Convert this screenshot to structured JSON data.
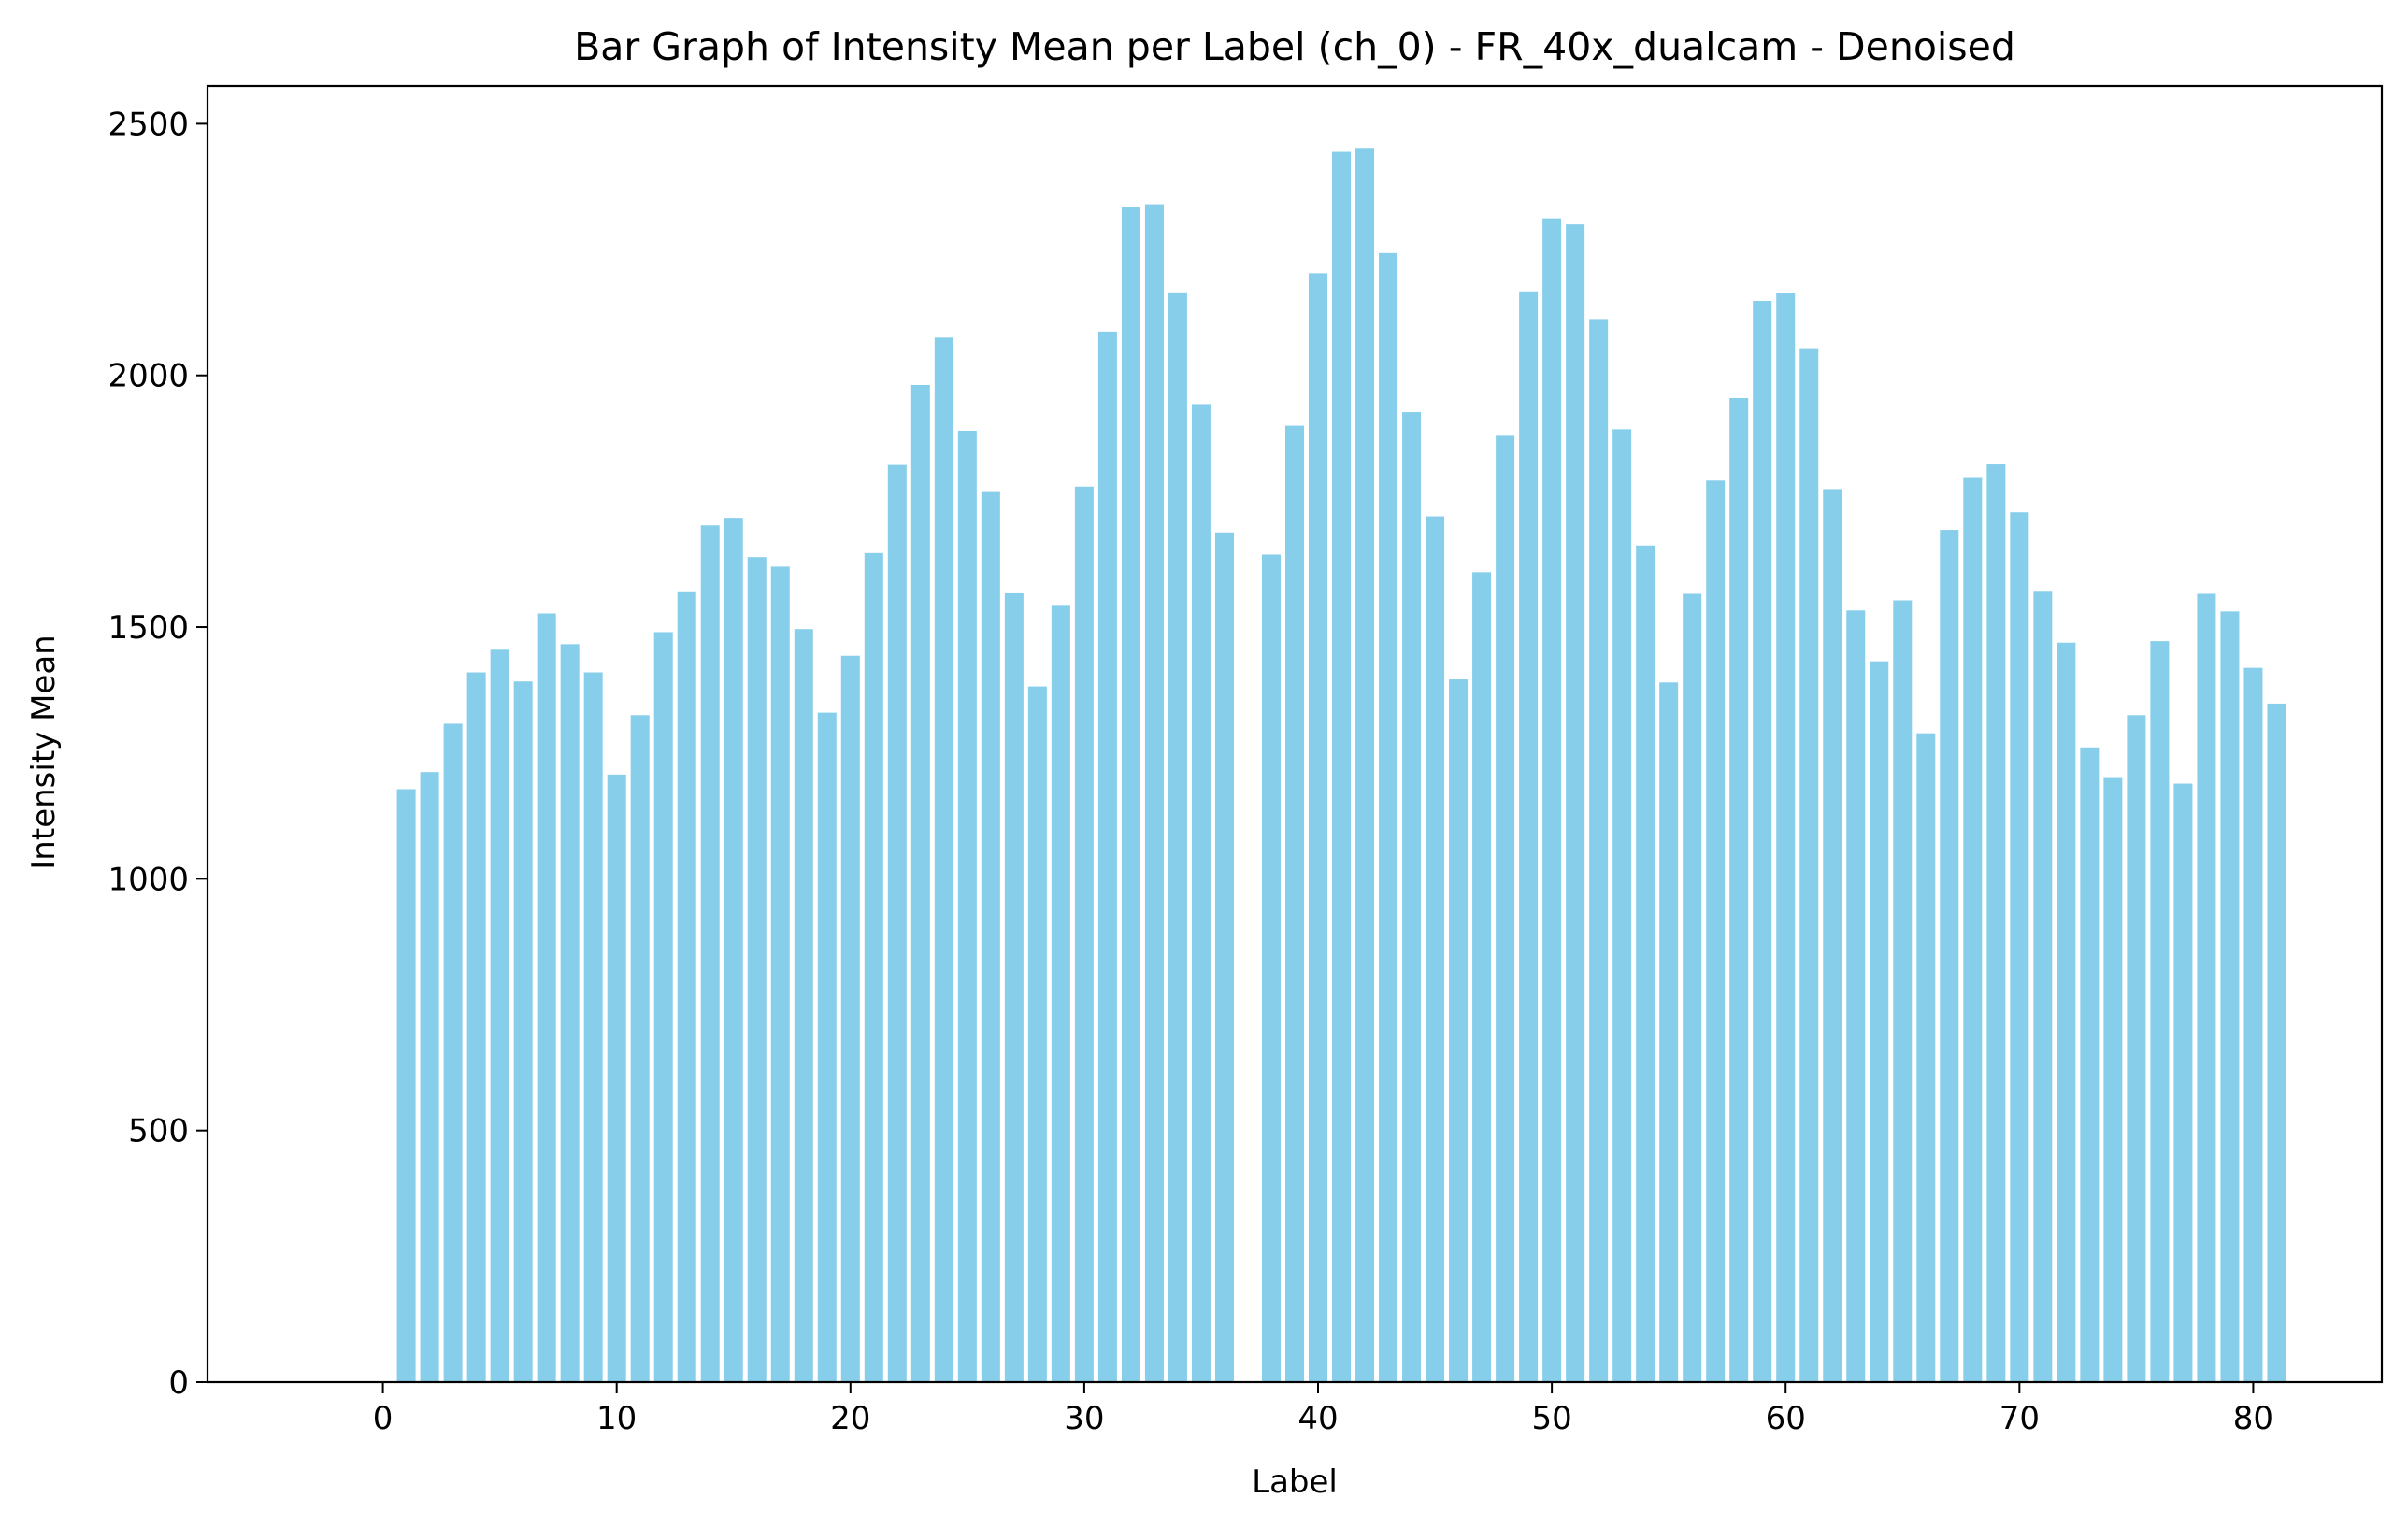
{
  "chart_data": {
    "type": "bar",
    "title": "Bar Graph of Intensity Mean per Label (ch_0) - FR_40x_dualcam - Denoised",
    "xlabel": "Label",
    "ylabel": "Intensity Mean",
    "x": [
      1,
      2,
      3,
      4,
      5,
      6,
      7,
      8,
      9,
      10,
      11,
      12,
      13,
      14,
      15,
      16,
      17,
      18,
      19,
      20,
      21,
      22,
      23,
      24,
      25,
      26,
      27,
      28,
      29,
      30,
      31,
      32,
      33,
      34,
      35,
      36,
      38,
      39,
      40,
      41,
      42,
      43,
      44,
      45,
      46,
      47,
      48,
      49,
      50,
      51,
      52,
      53,
      54,
      55,
      56,
      57,
      58,
      59,
      60,
      61,
      62,
      63,
      64,
      65,
      66,
      67,
      68,
      69,
      70,
      71,
      72,
      73,
      74,
      75,
      76,
      77,
      78,
      79,
      80,
      81
    ],
    "values": [
      1178,
      1212,
      1308,
      1410,
      1455,
      1392,
      1527,
      1466,
      1410,
      1207,
      1325,
      1490,
      1571,
      1702,
      1717,
      1639,
      1620,
      1496,
      1330,
      1443,
      1647,
      1822,
      1981,
      2075,
      1890,
      1770,
      1567,
      1382,
      1544,
      1779,
      2087,
      2335,
      2340,
      2165,
      1943,
      1688,
      1644,
      1900,
      2203,
      2444,
      2452,
      2243,
      1927,
      1720,
      1396,
      1609,
      1880,
      2167,
      2312,
      2300,
      2112,
      1893,
      1662,
      1390,
      1566,
      1791,
      1955,
      2148,
      2163,
      2054,
      1774,
      1533,
      1432,
      1553,
      1289,
      1693,
      1798,
      1823,
      1728,
      1572,
      1469,
      1261,
      1202,
      1325,
      1472,
      1189,
      1566,
      1531,
      1419,
      1348
    ],
    "xlim": [
      -7.5,
      85.5
    ],
    "ylim": [
      0,
      2575
    ],
    "xticks": [
      0,
      10,
      20,
      30,
      40,
      50,
      60,
      70,
      80
    ],
    "yticks": [
      0,
      500,
      1000,
      1500,
      2000,
      2500
    ],
    "bar_color": "#87ceeb",
    "grid": false,
    "legend": false
  }
}
